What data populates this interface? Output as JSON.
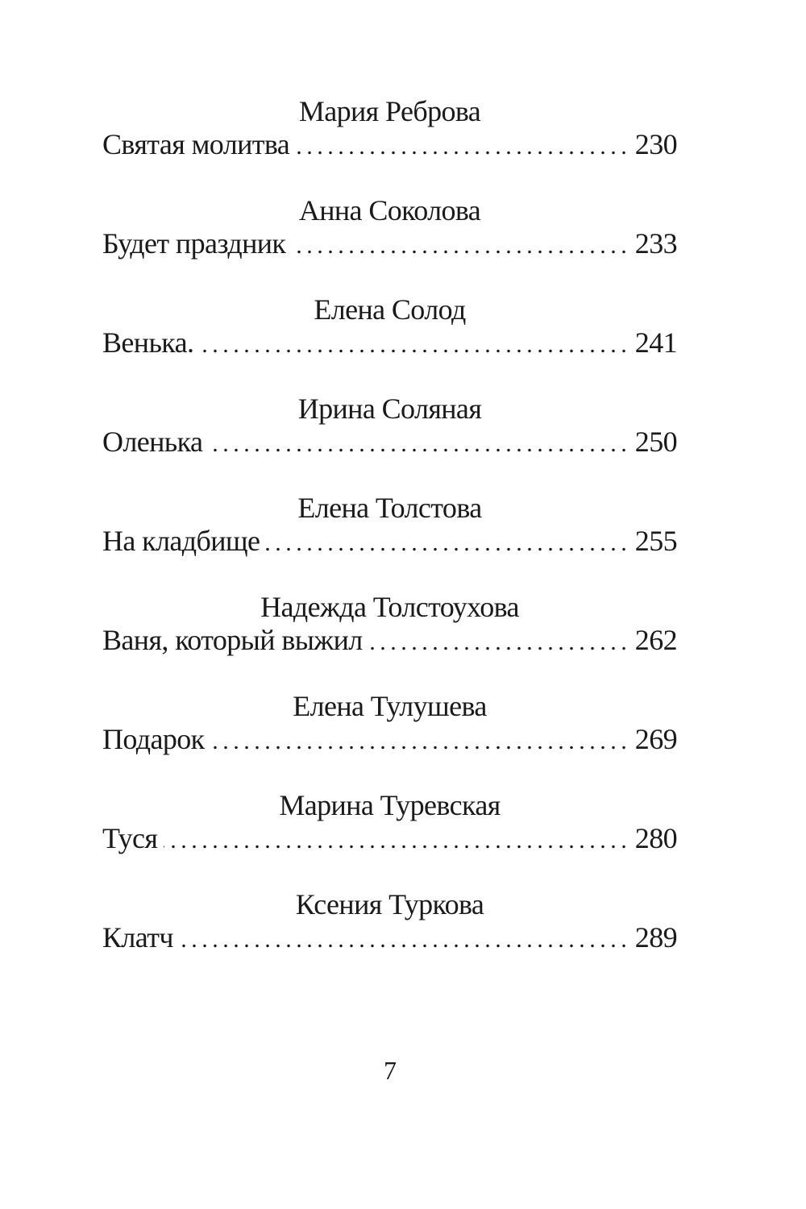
{
  "entries": [
    {
      "author": "Мария Реброва",
      "title": "Святая молитва",
      "page": "230"
    },
    {
      "author": "Анна Соколова",
      "title": "Будет праздник",
      "page": "233"
    },
    {
      "author": "Елена Солод",
      "title": "Венька.",
      "page": "241"
    },
    {
      "author": "Ирина Соляная",
      "title": "Оленька",
      "page": "250"
    },
    {
      "author": "Елена Толстова",
      "title": "На кладбище",
      "page": "255"
    },
    {
      "author": "Надежда Толстоухова",
      "title": "Ваня, который выжил",
      "page": "262"
    },
    {
      "author": "Елена Тулушева",
      "title": "Подарок",
      "page": "269"
    },
    {
      "author": "Марина Туревская",
      "title": "Туся",
      "page": "280"
    },
    {
      "author": "Ксения Туркова",
      "title": "Клатч",
      "page": "289"
    }
  ],
  "page_number": "7"
}
